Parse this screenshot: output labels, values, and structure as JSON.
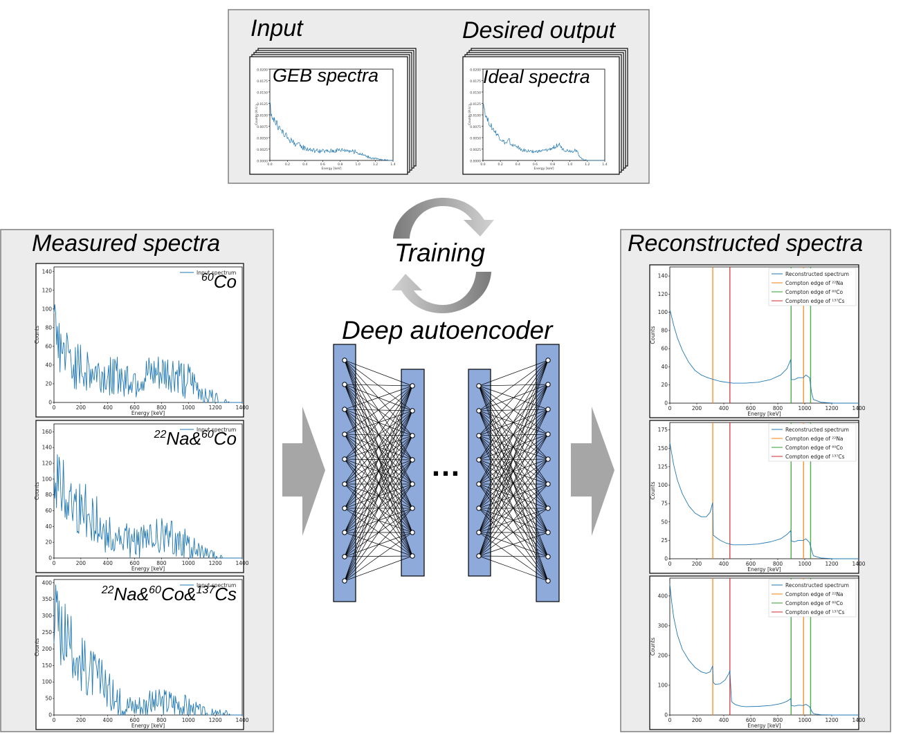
{
  "labels": {
    "input": "Input",
    "desired_output": "Desired output",
    "geb_spectra": "GEB spectra",
    "ideal_spectra": "Ideal spectra",
    "measured_spectra": "Measured spectra",
    "reconstructed_spectra": "Reconstructed spectra",
    "training": "Training",
    "deep_autoencoder": "Deep autoencoder",
    "ellipsis": "…"
  },
  "colors": {
    "panel_bg": "#ececec",
    "panel_border": "#7f7f7f",
    "arrow_gray": "#a6a6a6",
    "layer_fill": "#8eaadb",
    "spectrum_blue": "#1f77b4",
    "compton_na": "#ff7f0e",
    "compton_co": "#2ca02c",
    "compton_cs": "#d62728"
  },
  "chart_data": [
    {
      "type": "line",
      "id": "geb",
      "title": "",
      "xlabel": "Energy [keV]",
      "ylabel": "Counts (A.U.)",
      "xlim": [
        0,
        1.4
      ],
      "ylim": [
        0,
        0.02
      ],
      "xticks": [
        "0.0",
        "0.2",
        "0.4",
        "0.6",
        "0.8",
        "1.0",
        "1.2",
        "1.4"
      ],
      "yticks": [
        "0.0000",
        "0.0025",
        "0.0050",
        "0.0075",
        "0.0100",
        "0.0125",
        "0.0150",
        "0.0175",
        "0.0200"
      ],
      "series": [
        {
          "x": [
            0,
            0.02,
            0.05,
            0.08,
            0.12,
            0.16,
            0.2,
            0.25,
            0.3,
            0.35,
            0.4,
            0.45,
            0.5,
            0.55,
            0.6,
            0.65,
            0.7,
            0.75,
            0.8,
            0.85,
            0.9,
            0.95,
            1.0,
            1.05,
            1.1,
            1.15,
            1.2,
            1.25,
            1.3,
            1.35,
            1.4
          ],
          "y": [
            0.012,
            0.0102,
            0.0089,
            0.0078,
            0.0068,
            0.0058,
            0.005,
            0.0042,
            0.0036,
            0.0031,
            0.0027,
            0.0024,
            0.0022,
            0.0021,
            0.002,
            0.002,
            0.0021,
            0.0022,
            0.0023,
            0.0023,
            0.0022,
            0.002,
            0.0017,
            0.0013,
            0.0009,
            0.0006,
            0.0004,
            0.0002,
            0.0001,
            0,
            0
          ]
        }
      ]
    },
    {
      "type": "line",
      "id": "ideal",
      "title": "",
      "xlabel": "Energy [keV]",
      "ylabel": "Counts (A.U.)",
      "xlim": [
        0,
        1.4
      ],
      "ylim": [
        0,
        0.02
      ],
      "xticks": [
        "0.0",
        "0.2",
        "0.4",
        "0.6",
        "0.8",
        "1.0",
        "1.2",
        "1.4"
      ],
      "yticks": [
        "0.0000",
        "0.0025",
        "0.0050",
        "0.0075",
        "0.0100",
        "0.0125",
        "0.0150",
        "0.0175",
        "0.0200"
      ],
      "series": [
        {
          "x": [
            0,
            0.02,
            0.05,
            0.08,
            0.12,
            0.16,
            0.2,
            0.24,
            0.27,
            0.3,
            0.32,
            0.35,
            0.38,
            0.42,
            0.45,
            0.5,
            0.55,
            0.6,
            0.65,
            0.7,
            0.75,
            0.8,
            0.85,
            0.88,
            0.9,
            0.95,
            1.0,
            1.03,
            1.06,
            1.08,
            1.1,
            1.13,
            1.16,
            1.2,
            1.3,
            1.4
          ],
          "y": [
            0.0128,
            0.0107,
            0.0092,
            0.008,
            0.0068,
            0.0057,
            0.0048,
            0.004,
            0.0037,
            0.0045,
            0.0036,
            0.0031,
            0.0034,
            0.0026,
            0.0023,
            0.0021,
            0.002,
            0.0019,
            0.002,
            0.0021,
            0.0023,
            0.0027,
            0.0033,
            0.0035,
            0.0027,
            0.0022,
            0.0021,
            0.002,
            0.0024,
            0.002,
            0.0012,
            0.0005,
            0.0002,
            0,
            0,
            0
          ]
        }
      ]
    },
    {
      "type": "line",
      "id": "m1",
      "title": "",
      "xlabel": "Energy [keV]",
      "ylabel": "Counts",
      "xlim": [
        0,
        1500
      ],
      "ylim": [
        0,
        145
      ],
      "xticks": [
        "0",
        "200",
        "400",
        "600",
        "800",
        "1000",
        "1200",
        "1400"
      ],
      "yticks": [
        "0",
        "20",
        "40",
        "60",
        "80",
        "100",
        "120",
        "140"
      ],
      "legend": [
        "Input spectrum"
      ],
      "isotope_label": "60Co",
      "series": [
        {
          "name": "Input spectrum",
          "x": [
            0,
            20,
            50,
            80,
            120,
            160,
            200,
            250,
            300,
            350,
            400,
            450,
            500,
            550,
            600,
            650,
            700,
            750,
            800,
            850,
            900,
            950,
            1000,
            1050,
            1100,
            1150,
            1200,
            1250,
            1300,
            1350,
            1400,
            1450,
            1500
          ],
          "y": [
            80,
            72,
            62,
            54,
            47,
            42,
            38,
            35,
            33,
            31,
            29,
            28,
            27,
            27,
            26,
            26,
            26,
            27,
            28,
            29,
            30,
            30,
            28,
            24,
            19,
            14,
            10,
            6,
            3,
            1,
            0,
            0,
            0
          ]
        }
      ]
    },
    {
      "type": "line",
      "id": "m2",
      "title": "",
      "xlabel": "Energy [keV]",
      "ylabel": "Counts",
      "xlim": [
        0,
        1500
      ],
      "ylim": [
        0,
        170
      ],
      "xticks": [
        "0",
        "200",
        "400",
        "600",
        "800",
        "1000",
        "1200",
        "1400"
      ],
      "yticks": [
        "0",
        "20",
        "40",
        "60",
        "80",
        "100",
        "120",
        "140",
        "160"
      ],
      "legend": [
        "Input spectrum"
      ],
      "isotope_label": "22Na&60Co",
      "series": [
        {
          "name": "Input spectrum",
          "x": [
            0,
            20,
            50,
            80,
            120,
            160,
            200,
            250,
            300,
            340,
            380,
            420,
            460,
            500,
            550,
            600,
            650,
            700,
            750,
            800,
            850,
            900,
            950,
            1000,
            1050,
            1100,
            1150,
            1200,
            1250,
            1300,
            1350,
            1400,
            1500
          ],
          "y": [
            120,
            110,
            98,
            88,
            80,
            73,
            67,
            60,
            55,
            48,
            36,
            30,
            27,
            25,
            23,
            22,
            21,
            22,
            24,
            27,
            28,
            28,
            26,
            23,
            18,
            13,
            9,
            5,
            3,
            1,
            0,
            0,
            0
          ]
        }
      ]
    },
    {
      "type": "line",
      "id": "m3",
      "title": "",
      "xlabel": "Energy [keV]",
      "ylabel": "Counts",
      "xlim": [
        0,
        1500
      ],
      "ylim": [
        0,
        410
      ],
      "xticks": [
        "0",
        "200",
        "400",
        "600",
        "800",
        "1000",
        "1200",
        "1400"
      ],
      "yticks": [
        "0",
        "50",
        "100",
        "150",
        "200",
        "250",
        "300",
        "350",
        "400"
      ],
      "legend": [
        "Input spectrum"
      ],
      "isotope_label": "22Na&60Co&137Cs",
      "series": [
        {
          "name": "Input spectrum",
          "x": [
            0,
            20,
            50,
            80,
            120,
            160,
            200,
            250,
            300,
            350,
            400,
            450,
            480,
            520,
            560,
            600,
            650,
            700,
            750,
            800,
            850,
            900,
            950,
            1000,
            1050,
            1100,
            1150,
            1200,
            1250,
            1300,
            1400,
            1500
          ],
          "y": [
            330,
            300,
            270,
            240,
            215,
            190,
            168,
            150,
            130,
            112,
            92,
            70,
            50,
            38,
            32,
            30,
            30,
            31,
            33,
            36,
            40,
            42,
            40,
            36,
            28,
            20,
            13,
            7,
            3,
            1,
            0,
            0
          ]
        }
      ]
    },
    {
      "type": "line",
      "id": "r1",
      "title": "",
      "xlabel": "Energy [keV]",
      "ylabel": "Counts",
      "xlim": [
        0,
        1500
      ],
      "ylim": [
        0,
        150
      ],
      "xticks": [
        "0",
        "200",
        "400",
        "600",
        "800",
        "1000",
        "1200",
        "1400"
      ],
      "yticks": [
        "0",
        "20",
        "40",
        "60",
        "80",
        "100",
        "120",
        "140"
      ],
      "legend": [
        "Reconstructed spectrum",
        "Compton edge of ²²Na",
        "Compton edge of ⁶⁰Co",
        "Compton edge of ¹³⁷Cs"
      ],
      "compton_edges": {
        "na": [
          341,
          1062
        ],
        "co": [
          963,
          1118
        ],
        "cs": [
          477
        ]
      },
      "series": [
        {
          "name": "Reconstructed spectrum",
          "x": [
            0,
            10,
            30,
            60,
            100,
            150,
            200,
            250,
            300,
            350,
            400,
            500,
            600,
            700,
            800,
            880,
            930,
            960,
            965,
            990,
            1020,
            1060,
            1080,
            1110,
            1125,
            1140,
            1160,
            1200,
            1300,
            1500
          ],
          "y": [
            103,
            98,
            86,
            72,
            58,
            45,
            36,
            31,
            28,
            26,
            24,
            22,
            22,
            23,
            26,
            31,
            38,
            48,
            26,
            26,
            28,
            28,
            31,
            28,
            12,
            4,
            3,
            1,
            0,
            0
          ]
        }
      ]
    },
    {
      "type": "line",
      "id": "r2",
      "title": "",
      "xlabel": "Energy [keV]",
      "ylabel": "Counts",
      "xlim": [
        0,
        1500
      ],
      "ylim": [
        0,
        185
      ],
      "xticks": [
        "0",
        "200",
        "400",
        "600",
        "800",
        "1000",
        "1200",
        "1400"
      ],
      "yticks": [
        "0",
        "25",
        "50",
        "75",
        "100",
        "125",
        "150",
        "175"
      ],
      "legend": [
        "Reconstructed spectrum",
        "Compton edge of ²²Na",
        "Compton edge of ⁶⁰Co",
        "Compton edge of ¹³⁷Cs"
      ],
      "compton_edges": {
        "na": [
          341,
          1062
        ],
        "co": [
          963,
          1118
        ],
        "cs": [
          477
        ]
      },
      "series": [
        {
          "name": "Reconstructed spectrum",
          "x": [
            0,
            10,
            30,
            60,
            100,
            150,
            200,
            250,
            290,
            320,
            340,
            345,
            360,
            400,
            450,
            500,
            600,
            700,
            800,
            880,
            930,
            960,
            965,
            990,
            1020,
            1060,
            1080,
            1110,
            1125,
            1140,
            1160,
            1200,
            1300,
            1500
          ],
          "y": [
            158,
            148,
            128,
            107,
            88,
            72,
            62,
            57,
            57,
            63,
            76,
            32,
            30,
            25,
            21,
            19,
            19,
            20,
            23,
            27,
            33,
            38,
            24,
            23,
            25,
            25,
            27,
            22,
            12,
            4,
            3,
            1,
            0,
            0
          ]
        }
      ]
    },
    {
      "type": "line",
      "id": "r3",
      "title": "",
      "xlabel": "Energy [keV]",
      "ylabel": "Counts",
      "xlim": [
        0,
        1500
      ],
      "ylim": [
        0,
        460
      ],
      "xticks": [
        "0",
        "200",
        "400",
        "600",
        "800",
        "1000",
        "1200",
        "1400"
      ],
      "yticks": [
        "0",
        "100",
        "200",
        "300",
        "400"
      ],
      "legend": [
        "Reconstructed spectrum",
        "Compton edge of ²²Na",
        "Compton edge of ⁶⁰Co",
        "Compton edge of ¹³⁷Cs"
      ],
      "compton_edges": {
        "na": [
          341,
          1062
        ],
        "co": [
          963,
          1118
        ],
        "cs": [
          477
        ]
      },
      "series": [
        {
          "name": "Reconstructed spectrum",
          "x": [
            0,
            5,
            15,
            30,
            60,
            100,
            150,
            200,
            250,
            290,
            320,
            340,
            345,
            360,
            400,
            440,
            470,
            477,
            490,
            520,
            560,
            600,
            700,
            800,
            880,
            930,
            960,
            965,
            990,
            1020,
            1060,
            1080,
            1110,
            1125,
            1140,
            1160,
            1200,
            1300,
            1500
          ],
          "y": [
            440,
            420,
            380,
            330,
            270,
            220,
            185,
            160,
            145,
            140,
            145,
            165,
            110,
            103,
            105,
            118,
            140,
            150,
            45,
            35,
            30,
            28,
            29,
            32,
            38,
            46,
            55,
            32,
            30,
            33,
            32,
            36,
            28,
            14,
            5,
            3,
            1,
            0,
            0
          ]
        }
      ]
    }
  ]
}
